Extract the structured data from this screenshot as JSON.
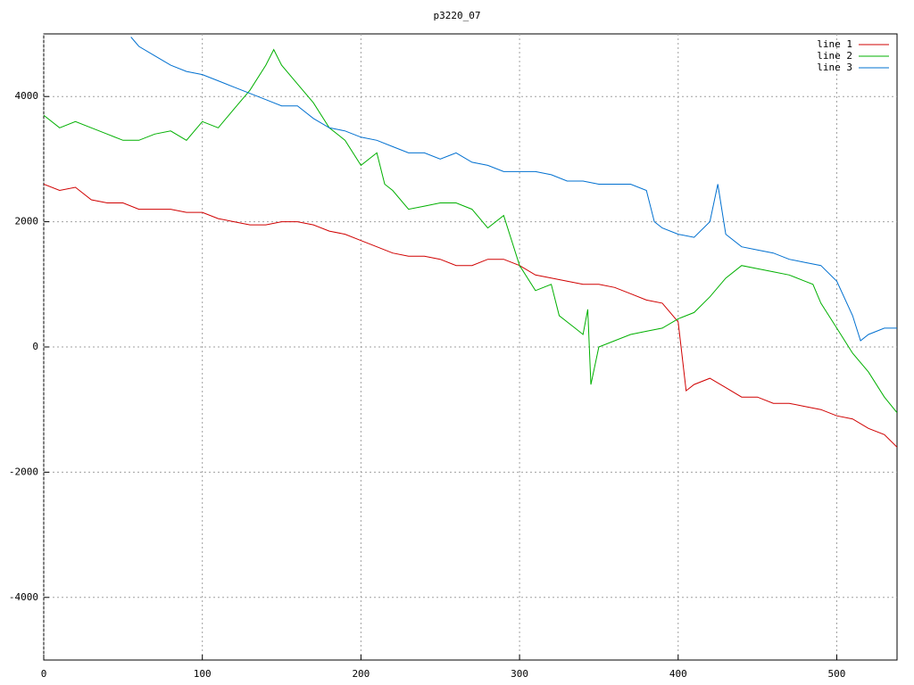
{
  "chart_data": {
    "type": "line",
    "title": "p3220_07",
    "xlim": [
      0,
      538
    ],
    "xticks": [
      0,
      100,
      200,
      300,
      400,
      500
    ],
    "ylim": [
      -5000,
      5000
    ],
    "yticks": [
      -4000,
      -2000,
      0,
      2000,
      4000
    ],
    "grid": true,
    "legend": "top-right",
    "series": [
      {
        "name": "line 1",
        "color": "#d00000",
        "x": [
          0,
          10,
          20,
          30,
          40,
          50,
          60,
          70,
          80,
          90,
          100,
          110,
          120,
          130,
          140,
          150,
          160,
          170,
          180,
          190,
          200,
          210,
          220,
          230,
          240,
          250,
          260,
          270,
          280,
          290,
          300,
          310,
          320,
          330,
          340,
          350,
          360,
          370,
          380,
          390,
          400,
          405,
          410,
          420,
          430,
          440,
          450,
          460,
          470,
          480,
          490,
          500,
          510,
          520,
          530,
          538
        ],
        "values": [
          2600,
          2500,
          2550,
          2350,
          2300,
          2300,
          2200,
          2200,
          2200,
          2150,
          2150,
          2050,
          2000,
          1950,
          1950,
          2000,
          2000,
          1950,
          1850,
          1800,
          1700,
          1600,
          1500,
          1450,
          1450,
          1400,
          1300,
          1300,
          1400,
          1400,
          1300,
          1150,
          1100,
          1050,
          1000,
          1000,
          950,
          850,
          750,
          700,
          400,
          -700,
          -600,
          -500,
          -650,
          -800,
          -800,
          -900,
          -900,
          -950,
          -1000,
          -1100,
          -1150,
          -1300,
          -1400,
          -1600
        ]
      },
      {
        "name": "line 2",
        "color": "#00b000",
        "x": [
          0,
          10,
          20,
          30,
          40,
          50,
          60,
          70,
          80,
          90,
          100,
          110,
          120,
          130,
          140,
          145,
          150,
          160,
          170,
          180,
          190,
          200,
          210,
          215,
          220,
          230,
          240,
          250,
          260,
          270,
          280,
          290,
          300,
          310,
          320,
          325,
          335,
          340,
          343,
          345,
          350,
          360,
          370,
          380,
          390,
          400,
          410,
          420,
          430,
          440,
          450,
          460,
          470,
          480,
          485,
          490,
          500,
          510,
          520,
          530,
          538
        ],
        "values": [
          3700,
          3500,
          3600,
          3500,
          3400,
          3300,
          3300,
          3400,
          3450,
          3300,
          3600,
          3500,
          3800,
          4100,
          4500,
          4750,
          4500,
          4200,
          3900,
          3500,
          3300,
          2900,
          3100,
          2600,
          2500,
          2200,
          2250,
          2300,
          2300,
          2200,
          1900,
          2100,
          1300,
          900,
          1000,
          500,
          300,
          200,
          600,
          -600,
          0,
          100,
          200,
          250,
          300,
          450,
          550,
          800,
          1100,
          1300,
          1250,
          1200,
          1150,
          1050,
          1000,
          700,
          300,
          -100,
          -400,
          -800,
          -1050
        ]
      },
      {
        "name": "line 3",
        "color": "#0070d0",
        "x": [
          55,
          60,
          70,
          80,
          90,
          100,
          110,
          120,
          130,
          140,
          150,
          160,
          170,
          180,
          190,
          200,
          210,
          220,
          230,
          240,
          250,
          260,
          270,
          280,
          290,
          300,
          310,
          320,
          330,
          340,
          350,
          360,
          370,
          380,
          385,
          390,
          400,
          410,
          420,
          425,
          430,
          440,
          450,
          460,
          470,
          480,
          490,
          500,
          510,
          515,
          520,
          530,
          538
        ],
        "values": [
          4950,
          4800,
          4650,
          4500,
          4400,
          4350,
          4250,
          4150,
          4050,
          3950,
          3850,
          3850,
          3650,
          3500,
          3450,
          3350,
          3300,
          3200,
          3100,
          3100,
          3000,
          3100,
          2950,
          2900,
          2800,
          2800,
          2800,
          2750,
          2650,
          2650,
          2600,
          2600,
          2600,
          2500,
          2000,
          1900,
          1800,
          1750,
          2000,
          2600,
          1800,
          1600,
          1550,
          1500,
          1400,
          1350,
          1300,
          1050,
          500,
          100,
          200,
          300,
          300
        ]
      }
    ]
  }
}
